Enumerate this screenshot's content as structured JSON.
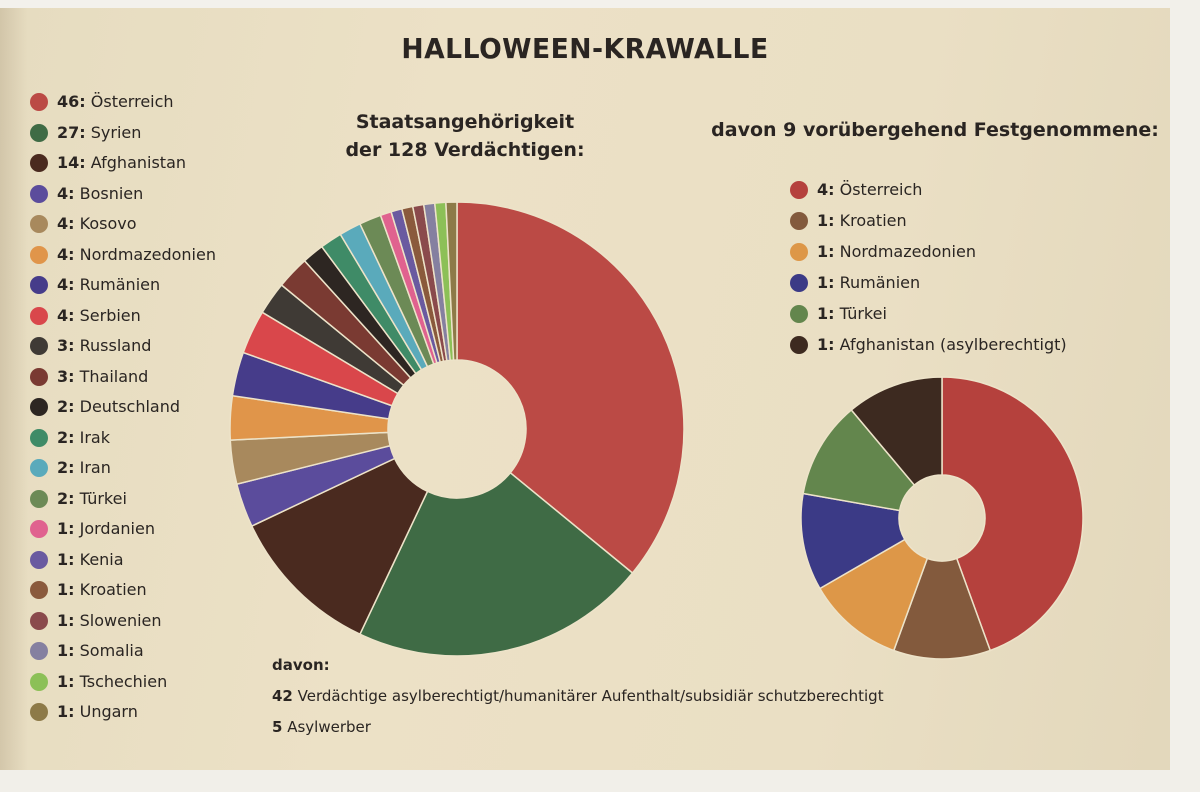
{
  "title": "HALLOWEEN-KRAWALLE",
  "notes": {
    "heading": "davon:",
    "lines": [
      {
        "count": "42",
        "text": "Verdächtige asylberechtigt/humanitärer Aufenthalt/subsidiär schutzberechtigt"
      },
      {
        "count": "5",
        "text": "Asylwerber"
      }
    ]
  },
  "chart_data": [
    {
      "type": "pie",
      "subtitle_line1": "Staatsangehörigkeit",
      "subtitle_line2": "der 128 Verdächtigen:",
      "donut": true,
      "legend_position": "left",
      "labels": [
        "Österreich",
        "Syrien",
        "Afghanistan",
        "Bosnien",
        "Kosovo",
        "Nordmazedonien",
        "Rumänien",
        "Serbien",
        "Russland",
        "Thailand",
        "Deutschland",
        "Irak",
        "Iran",
        "Türkei",
        "Jordanien",
        "Kenia",
        "Kroatien",
        "Slowenien",
        "Somalia",
        "Tschechien",
        "Ungarn"
      ],
      "values": [
        46,
        27,
        14,
        4,
        4,
        4,
        4,
        4,
        3,
        3,
        2,
        2,
        2,
        2,
        1,
        1,
        1,
        1,
        1,
        1,
        1
      ],
      "colors": [
        "#bb4a45",
        "#3f6b45",
        "#4a2a1f",
        "#5b4c9c",
        "#a8895d",
        "#e0954a",
        "#463c8a",
        "#d9474b",
        "#3f3a35",
        "#7a3a32",
        "#2d2622",
        "#3f8b67",
        "#5aaabb",
        "#6c8a56",
        "#e0628f",
        "#6a5aa0",
        "#8a5a3c",
        "#8a4a4c",
        "#8580a0",
        "#8cc057",
        "#8d7a48"
      ]
    },
    {
      "type": "pie",
      "subtitle": "davon 9 vorübergehend Festgenommene:",
      "donut": true,
      "legend_position": "top",
      "labels": [
        "Österreich",
        "Kroatien",
        "Nordmazedonien",
        "Rumänien",
        "Türkei",
        "Afghanistan (asylberechtigt)"
      ],
      "values": [
        4,
        1,
        1,
        1,
        1,
        1
      ],
      "colors": [
        "#b5413d",
        "#835a3d",
        "#dd9748",
        "#3b3a86",
        "#63864d",
        "#3d2a20"
      ]
    }
  ]
}
